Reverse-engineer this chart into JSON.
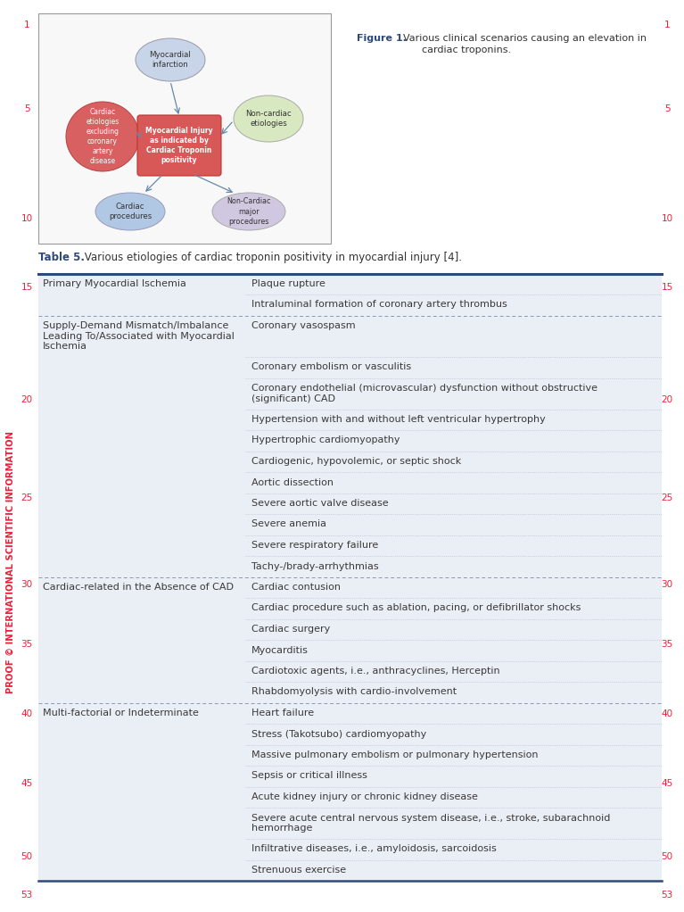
{
  "figure_caption_bold": "Figure 1.",
  "figure_caption_text": " Various clinical scenarios causing an elevation in\n        cardiac troponins.",
  "table_caption_bold": "Table 5.",
  "table_caption_text": " Various etiologies of cardiac troponin positivity in myocardial injury [4].",
  "bg_color": "#eaeef5",
  "page_bg": "#ffffff",
  "sidebar_text": "PROOF © INTERNATIONAL SCIENTIFIC INFORMATION",
  "sidebar_color": "#e8213a",
  "line_number_color": "#e8213a",
  "table_header_line_color": "#2e4a7a",
  "table_row_divider_color": "#b0b8c8",
  "table_text_color": "#3a3a3a",
  "rows": [
    {
      "col1": "Primary Myocardial Ischemia",
      "col2": "Plaque rupture",
      "group_start": true
    },
    {
      "col1": "",
      "col2": "Intraluminal formation of coronary artery thrombus",
      "group_start": false
    },
    {
      "col1": "Supply-Demand Mismatch/Imbalance\nLeading To/Associated with Myocardial\nIschemia",
      "col2": "Coronary vasospasm",
      "group_start": true
    },
    {
      "col1": "",
      "col2": "Coronary embolism or vasculitis",
      "group_start": false
    },
    {
      "col1": "",
      "col2": "Coronary endothelial (microvascular) dysfunction without obstructive\n(significant) CAD",
      "group_start": false
    },
    {
      "col1": "",
      "col2": "Hypertension with and without left ventricular hypertrophy",
      "group_start": false
    },
    {
      "col1": "",
      "col2": "Hypertrophic cardiomyopathy",
      "group_start": false
    },
    {
      "col1": "",
      "col2": "Cardiogenic, hypovolemic, or septic shock",
      "group_start": false
    },
    {
      "col1": "",
      "col2": "Aortic dissection",
      "group_start": false
    },
    {
      "col1": "",
      "col2": "Severe aortic valve disease",
      "group_start": false
    },
    {
      "col1": "",
      "col2": "Severe anemia",
      "group_start": false
    },
    {
      "col1": "",
      "col2": "Severe respiratory failure",
      "group_start": false
    },
    {
      "col1": "",
      "col2": "Tachy-/brady-arrhythmias",
      "group_start": false
    },
    {
      "col1": "Cardiac-related in the Absence of CAD",
      "col2": "Cardiac contusion",
      "group_start": true
    },
    {
      "col1": "",
      "col2": "Cardiac procedure such as ablation, pacing, or defibrillator shocks",
      "group_start": false
    },
    {
      "col1": "",
      "col2": "Cardiac surgery",
      "group_start": false
    },
    {
      "col1": "",
      "col2": "Myocarditis",
      "group_start": false
    },
    {
      "col1": "",
      "col2": "Cardiotoxic agents, i.e., anthracyclines, Herceptin",
      "group_start": false
    },
    {
      "col1": "",
      "col2": "Rhabdomyolysis with cardio-involvement",
      "group_start": false
    },
    {
      "col1": "Multi-factorial or Indeterminate",
      "col2": "Heart failure",
      "group_start": true
    },
    {
      "col1": "",
      "col2": "Stress (Takotsubo) cardiomyopathy",
      "group_start": false
    },
    {
      "col1": "",
      "col2": "Massive pulmonary embolism or pulmonary hypertension",
      "group_start": false
    },
    {
      "col1": "",
      "col2": "Sepsis or critical illness",
      "group_start": false
    },
    {
      "col1": "",
      "col2": "Acute kidney injury or chronic kidney disease",
      "group_start": false
    },
    {
      "col1": "",
      "col2": "Severe acute central nervous system disease, i.e., stroke, subarachnoid\nhemorrhage",
      "group_start": false
    },
    {
      "col1": "",
      "col2": "Infiltrative diseases, i.e., amyloidosis, sarcoidosis",
      "group_start": false
    },
    {
      "col1": "",
      "col2": "Strenuous exercise",
      "group_start": false
    }
  ],
  "line_numbers": [
    1,
    5,
    10,
    15,
    20,
    25,
    30,
    35,
    40,
    45,
    50,
    53
  ],
  "line_number_y": [
    28,
    122,
    245,
    322,
    448,
    558,
    655,
    722,
    800,
    878,
    960,
    1003
  ]
}
